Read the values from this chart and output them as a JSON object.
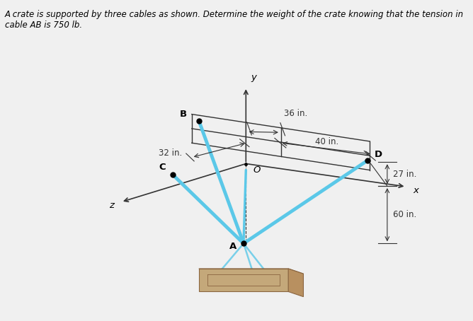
{
  "title": "A crate is supported by three cables as shown. Determine the weight of the crate knowing that the tension in cable AB is 750 lb.",
  "title_color": "#000000",
  "title_fontsize": 8.5,
  "bg_color": "#f0f0f0",
  "diagram_bg": "#ffffff",
  "cable_color": "#5bc8e8",
  "structure_color": "#333333",
  "dot_color": "#000000",
  "text_color": "#000000",
  "O": [
    0.5,
    0.48
  ],
  "B_label": "B",
  "C_label": "C",
  "D_label": "D",
  "A_label": "A",
  "O_label": "O",
  "y_label": "y",
  "x_label": "x",
  "z_label": "z",
  "dim_36": "36 in.",
  "dim_40": "40 in.",
  "dim_32": "32 in.",
  "dim_27": "27 in.",
  "dim_60": "60 in."
}
